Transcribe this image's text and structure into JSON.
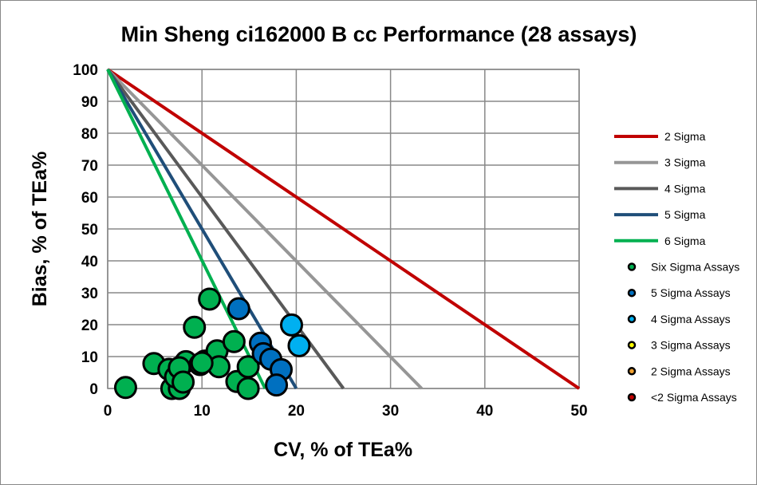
{
  "chart_data": {
    "type": "scatter",
    "title": "Min Sheng ci162000 B cc Performance (28 assays)",
    "xlabel": "CV, % of TEa%",
    "ylabel": "Bias, % of TEa%",
    "xlim": [
      0,
      50
    ],
    "ylim": [
      0,
      100
    ],
    "xticks": [
      0,
      10,
      20,
      30,
      40,
      50
    ],
    "yticks": [
      0,
      10,
      20,
      30,
      40,
      50,
      60,
      70,
      80,
      90,
      100
    ],
    "grid": true,
    "legend_position": "right",
    "lines": [
      {
        "name": "2 Sigma",
        "color": "#C00000",
        "x": [
          0,
          50
        ],
        "y": [
          100,
          0
        ]
      },
      {
        "name": "3 Sigma",
        "color": "#969696",
        "x": [
          0,
          33.3
        ],
        "y": [
          100,
          0
        ]
      },
      {
        "name": "4 Sigma",
        "color": "#595959",
        "x": [
          0,
          25
        ],
        "y": [
          100,
          0
        ]
      },
      {
        "name": "5 Sigma",
        "color": "#1F4E79",
        "x": [
          0,
          20
        ],
        "y": [
          100,
          0
        ]
      },
      {
        "name": "6 Sigma",
        "color": "#00B050",
        "x": [
          0,
          16.7
        ],
        "y": [
          100,
          0
        ]
      }
    ],
    "series": [
      {
        "name": "Six Sigma Assays",
        "color": "#00B050",
        "points": [
          [
            1.9,
            0.3
          ],
          [
            4.9,
            7.8
          ],
          [
            6.8,
            0
          ],
          [
            7.6,
            0
          ],
          [
            6.5,
            6
          ],
          [
            7.2,
            3.6
          ],
          [
            8.3,
            8.4
          ],
          [
            9.2,
            19.2
          ],
          [
            10.8,
            28
          ],
          [
            10.3,
            8.6
          ],
          [
            9.8,
            7.5
          ],
          [
            7.6,
            6.5
          ],
          [
            11.6,
            11.8
          ],
          [
            11.8,
            6.8
          ],
          [
            13.4,
            14.7
          ],
          [
            13.7,
            2.2
          ],
          [
            14.9,
            0
          ],
          [
            14.9,
            6.8
          ],
          [
            8.0,
            2.0
          ],
          [
            10.0,
            8.0
          ]
        ]
      },
      {
        "name": "5 Sigma Assays",
        "color": "#0070C0",
        "points": [
          [
            13.9,
            25
          ],
          [
            16.2,
            14.2
          ],
          [
            16.5,
            10.9
          ],
          [
            17.3,
            9.2
          ],
          [
            18.4,
            5.9
          ],
          [
            17.9,
            1.1
          ]
        ]
      },
      {
        "name": "4 Sigma Assays",
        "color": "#00B0F0",
        "points": [
          [
            19.5,
            19.9
          ],
          [
            20.3,
            13.4
          ]
        ]
      },
      {
        "name": "3 Sigma Assays",
        "color": "#FFFF00",
        "points": []
      },
      {
        "name": "2 Sigma Assays",
        "color": "#F0A030",
        "points": []
      },
      {
        "name": "<2 Sigma Assays",
        "color": "#C00000",
        "points": []
      }
    ]
  }
}
